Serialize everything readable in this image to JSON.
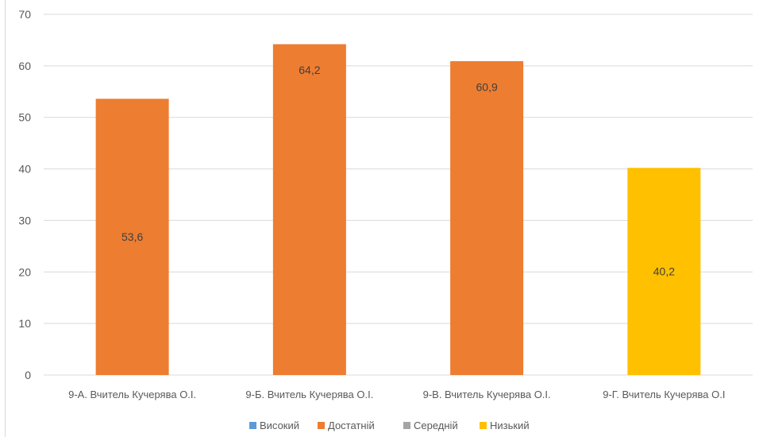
{
  "chart_data": {
    "type": "bar",
    "title": "",
    "xlabel": "",
    "ylabel": "",
    "ylim": [
      0,
      70
    ],
    "yticks": [
      0,
      10,
      20,
      30,
      40,
      50,
      60,
      70
    ],
    "grid": true,
    "legend_position": "bottom",
    "categories": [
      "9-А. Вчитель Кучерява О.І.",
      "9-Б. Вчитель Кучерява О.І.",
      "9-В. Вчитель Кучерява О.І.",
      "9-Г. Вчитель Кучерява О.І"
    ],
    "bars": [
      {
        "category_index": 0,
        "value": 53.6,
        "label": "53,6",
        "series": "Достатній"
      },
      {
        "category_index": 1,
        "value": 64.2,
        "label": "64,2",
        "series": "Достатній"
      },
      {
        "category_index": 2,
        "value": 60.9,
        "label": "60,9",
        "series": "Достатній"
      },
      {
        "category_index": 3,
        "value": 40.2,
        "label": "40,2",
        "series": "Низький"
      }
    ],
    "series": [
      {
        "name": "Високий",
        "color": "#5b9bd5",
        "values": [
          null,
          null,
          null,
          null
        ]
      },
      {
        "name": "Достатній",
        "color": "#ed7d31",
        "values": [
          53.6,
          64.2,
          60.9,
          null
        ]
      },
      {
        "name": "Середній",
        "color": "#a5a5a5",
        "values": [
          null,
          null,
          null,
          null
        ]
      },
      {
        "name": "Низький",
        "color": "#ffc000",
        "values": [
          null,
          null,
          null,
          40.2
        ]
      }
    ]
  }
}
